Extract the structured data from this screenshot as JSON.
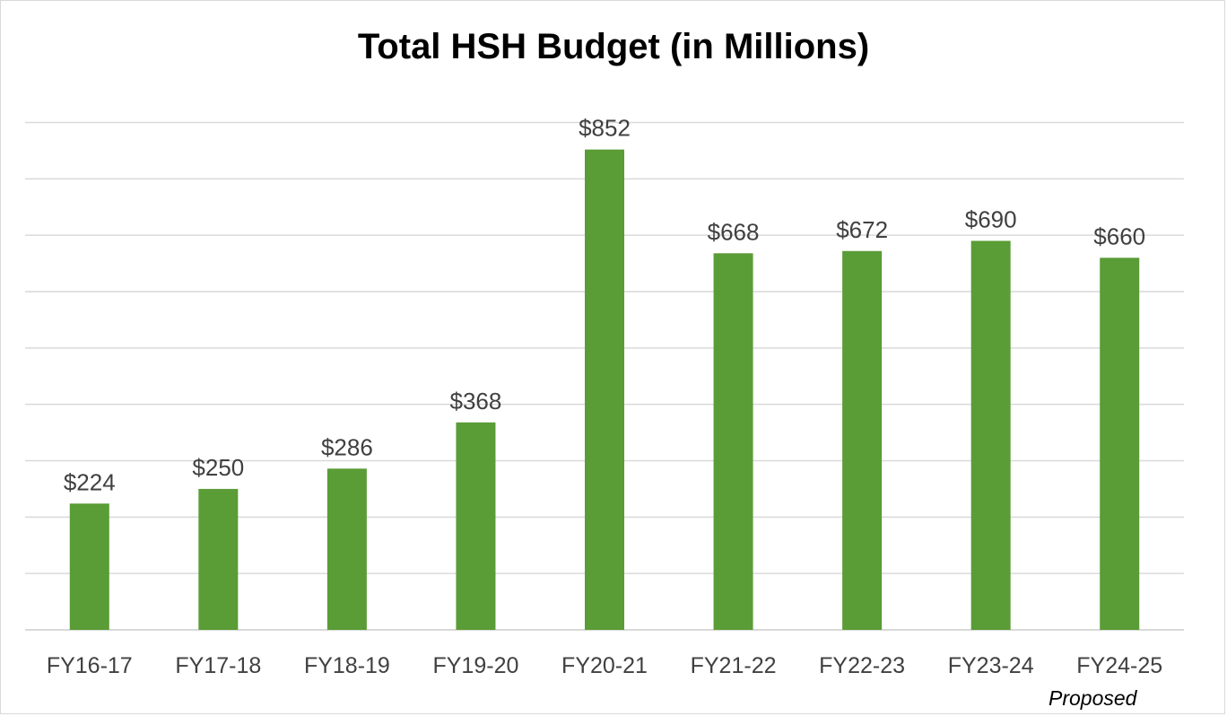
{
  "chart_data": {
    "type": "bar",
    "title": "Total HSH Budget (in Millions)",
    "xlabel": "",
    "ylabel": "",
    "categories": [
      "FY16-17",
      "FY17-18",
      "FY18-19",
      "FY19-20",
      "FY20-21",
      "FY21-22",
      "FY22-23",
      "FY23-24",
      "FY24-25"
    ],
    "values": [
      224,
      250,
      286,
      368,
      852,
      668,
      672,
      690,
      660
    ],
    "data_labels": [
      "$224",
      "$250",
      "$286",
      "$368",
      "$852",
      "$668",
      "$672",
      "$690",
      "$660"
    ],
    "category_notes": [
      "",
      "",
      "",
      "",
      "",
      "",
      "",
      "",
      "Proposed"
    ],
    "ylim": [
      0,
      900
    ],
    "grid_step": 100,
    "grid": true,
    "y_tick_labels_shown": false,
    "legend": "none",
    "bar_color": "#5a9c36",
    "grid_color": "#d9d9d9",
    "label_color": "#404040"
  }
}
